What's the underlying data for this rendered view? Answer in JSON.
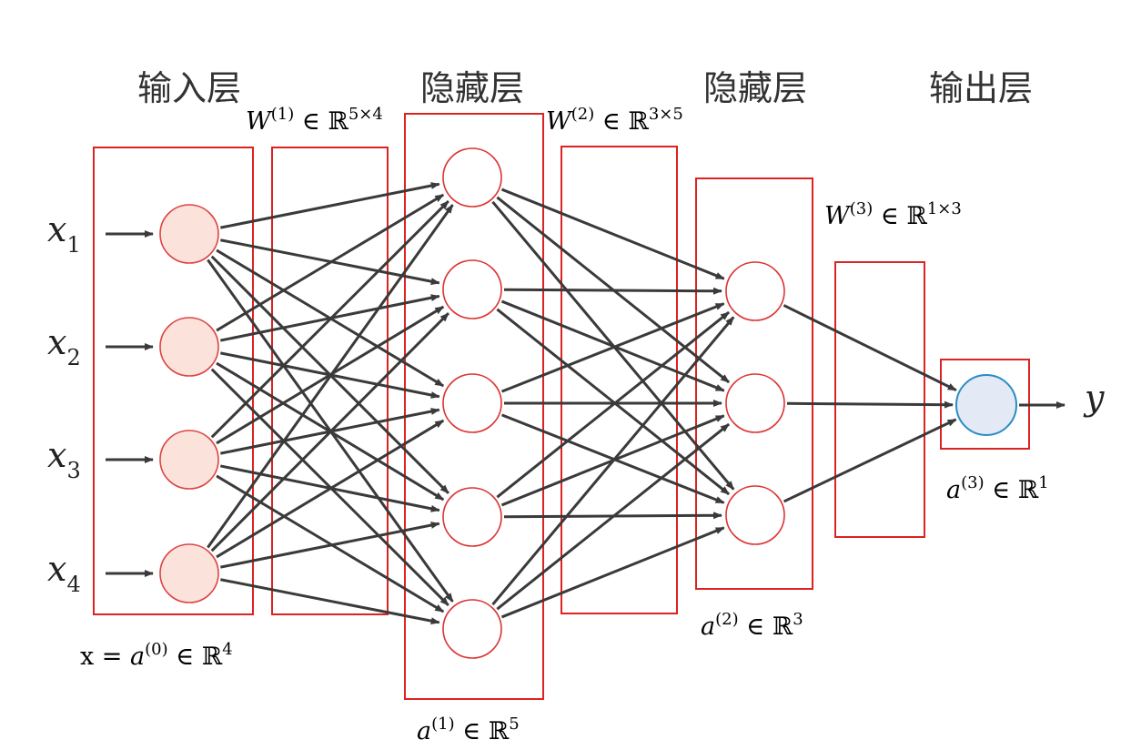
{
  "layers": {
    "input_title": "输入层",
    "hidden1_title": "隐藏层",
    "hidden2_title": "隐藏层",
    "output_title": "输出层"
  },
  "weights": {
    "w1": {
      "base": "W",
      "sup": "(1)",
      "rel": " ∈ ℝ",
      "dim": "5×4"
    },
    "w2": {
      "base": "W",
      "sup": "(2)",
      "rel": " ∈ ℝ",
      "dim": "3×5"
    },
    "w3": {
      "base": "W",
      "sup": "(3)",
      "rel": " ∈ ℝ",
      "dim": "1×3"
    }
  },
  "activations": {
    "a0": {
      "prefix": "x = ",
      "base": "a",
      "sup": "(0)",
      "rel": " ∈ ℝ",
      "dim": "4"
    },
    "a1": {
      "base": "a",
      "sup": "(1)",
      "rel": " ∈ ℝ",
      "dim": "5"
    },
    "a2": {
      "base": "a",
      "sup": "(2)",
      "rel": " ∈ ℝ",
      "dim": "3"
    },
    "a3": {
      "base": "a",
      "sup": "(3)",
      "rel": " ∈ ℝ",
      "dim": "1"
    }
  },
  "inputs": [
    {
      "base": "x",
      "sub": "1"
    },
    {
      "base": "x",
      "sub": "2"
    },
    {
      "base": "x",
      "sub": "3"
    },
    {
      "base": "x",
      "sub": "4"
    }
  ],
  "output": {
    "label": "y"
  },
  "network": {
    "layer_sizes": [
      4,
      5,
      3,
      1
    ]
  },
  "colors": {
    "box": "#dd2222",
    "edge": "#3a3a3a",
    "input_fill": "#fbe3dc",
    "input_stroke": "#dd4444",
    "hidden_fill": "#ffffff",
    "hidden_stroke": "#dd3333",
    "output_fill": "#e3e9f5",
    "output_stroke": "#2a8cc4"
  }
}
